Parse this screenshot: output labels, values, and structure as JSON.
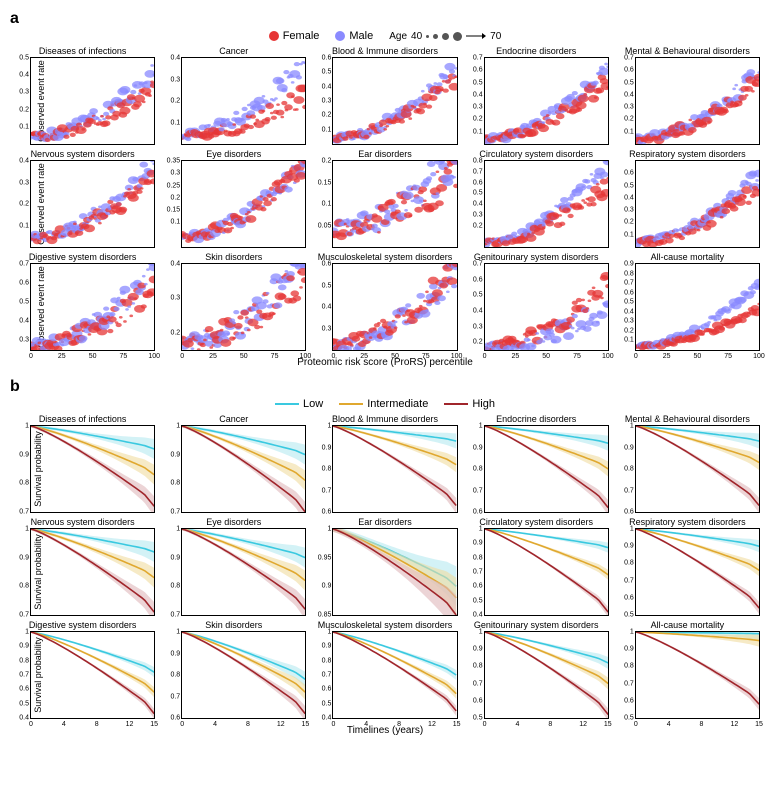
{
  "colors": {
    "female": "#e63535",
    "male": "#8a8aff",
    "low": "#3ac9e0",
    "intermediate": "#e0a82f",
    "high": "#a0252b",
    "ci_low": "#b6e9f0",
    "ci_mid": "#f0dca0",
    "ci_high": "#e0b8ba",
    "axis": "#000000",
    "bg": "#ffffff"
  },
  "section_a_label": "a",
  "section_b_label": "b",
  "legend_a": {
    "female": "Female",
    "male": "Male",
    "age_label": "Age",
    "age_min": "40",
    "age_max": "70"
  },
  "legend_b": {
    "low": "Low",
    "intermediate": "Intermediate",
    "high": "High"
  },
  "axis_a": {
    "xlabel": "Proteomic risk score (ProRS) percentile",
    "ylabel": "Observed event rate",
    "xticks": [
      0,
      25,
      50,
      75,
      100
    ]
  },
  "axis_b": {
    "xlabel": "Timelines (years)",
    "ylabel": "Survival probability",
    "xticks": [
      0,
      4,
      8,
      12,
      15
    ]
  },
  "panels_a": [
    {
      "title": "Diseases of infections",
      "ymax": 0.5,
      "yticks": [
        0.1,
        0.2,
        0.3,
        0.4,
        0.5
      ],
      "curve_m": 0.38,
      "curve_f": 0.3,
      "noise": 0.04
    },
    {
      "title": "Cancer",
      "ymax": 0.4,
      "yticks": [
        0.1,
        0.2,
        0.3,
        0.4
      ],
      "curve_m": 0.35,
      "curve_f": 0.18,
      "noise": 0.035
    },
    {
      "title": "Blood & Immune disorders",
      "ymax": 0.6,
      "yticks": [
        0.1,
        0.2,
        0.3,
        0.4,
        0.5,
        0.6
      ],
      "curve_m": 0.5,
      "curve_f": 0.42,
      "noise": 0.04
    },
    {
      "title": "Endocrine disorders",
      "ymax": 0.7,
      "yticks": [
        0.1,
        0.2,
        0.3,
        0.4,
        0.5,
        0.6,
        0.7
      ],
      "curve_m": 0.6,
      "curve_f": 0.48,
      "noise": 0.05
    },
    {
      "title": "Mental & Behavioural disorders",
      "ymax": 0.7,
      "yticks": [
        0.1,
        0.2,
        0.3,
        0.4,
        0.5,
        0.6,
        0.7
      ],
      "curve_m": 0.55,
      "curve_f": 0.48,
      "noise": 0.05
    },
    {
      "title": "Nervous system disorders",
      "ymax": 0.4,
      "yticks": [
        0.1,
        0.2,
        0.3,
        0.4
      ],
      "curve_m": 0.35,
      "curve_f": 0.3,
      "noise": 0.035
    },
    {
      "title": "Eye disorders",
      "ymax": 0.35,
      "yticks": [
        0.1,
        0.15,
        0.2,
        0.25,
        0.3,
        0.35
      ],
      "curve_m": 0.3,
      "curve_f": 0.3,
      "noise": 0.03
    },
    {
      "title": "Ear disorders",
      "ymax": 0.2,
      "yticks": [
        0.05,
        0.1,
        0.15,
        0.2
      ],
      "curve_m": 0.17,
      "curve_f": 0.13,
      "noise": 0.035
    },
    {
      "title": "Circulatory system disorders",
      "ymax": 0.8,
      "yticks": [
        0.2,
        0.3,
        0.4,
        0.5,
        0.6,
        0.7,
        0.8
      ],
      "curve_m": 0.75,
      "curve_f": 0.55,
      "noise": 0.06
    },
    {
      "title": "Respiratory system disorders",
      "ymax": 0.7,
      "yticks": [
        0.1,
        0.2,
        0.3,
        0.4,
        0.5,
        0.6
      ],
      "curve_m": 0.55,
      "curve_f": 0.45,
      "noise": 0.05
    },
    {
      "title": "Digestive system disorders",
      "ymax": 0.7,
      "yticks": [
        0.3,
        0.4,
        0.5,
        0.6,
        0.7
      ],
      "curve_m": 0.65,
      "curve_f": 0.55,
      "noise": 0.05,
      "ymin": 0.25
    },
    {
      "title": "Skin disorders",
      "ymax": 0.4,
      "yticks": [
        0.2,
        0.3,
        0.4
      ],
      "curve_m": 0.38,
      "curve_f": 0.35,
      "noise": 0.04,
      "ymin": 0.15
    },
    {
      "title": "Musculoskeletal system disorders",
      "ymax": 0.6,
      "yticks": [
        0.3,
        0.4,
        0.5,
        0.6
      ],
      "curve_m": 0.55,
      "curve_f": 0.58,
      "noise": 0.05,
      "ymin": 0.2
    },
    {
      "title": "Genitourinary system disorders",
      "ymax": 0.7,
      "yticks": [
        0.2,
        0.3,
        0.4,
        0.5,
        0.6,
        0.7
      ],
      "curve_m": 0.4,
      "curve_f": 0.55,
      "noise": 0.05,
      "ymin": 0.15
    },
    {
      "title": "All-cause mortality",
      "ymax": 0.9,
      "yticks": [
        0.1,
        0.2,
        0.3,
        0.4,
        0.5,
        0.6,
        0.7,
        0.8,
        0.9
      ],
      "curve_m": 0.65,
      "curve_f": 0.4,
      "noise": 0.03
    }
  ],
  "panels_b": [
    {
      "title": "Diseases of infections",
      "ymin": 0.7,
      "yticks": [
        0.7,
        0.8,
        0.9,
        1.0
      ],
      "end": {
        "l": 0.92,
        "m": 0.83,
        "h": 0.72
      }
    },
    {
      "title": "Cancer",
      "ymin": 0.7,
      "yticks": [
        0.7,
        0.8,
        0.9,
        1.0
      ],
      "end": {
        "l": 0.9,
        "m": 0.81,
        "h": 0.7
      }
    },
    {
      "title": "Blood & Immune disorders",
      "ymin": 0.6,
      "yticks": [
        0.6,
        0.7,
        0.8,
        0.9,
        1.0
      ],
      "end": {
        "l": 0.93,
        "m": 0.82,
        "h": 0.63
      }
    },
    {
      "title": "Endocrine disorders",
      "ymin": 0.6,
      "yticks": [
        0.6,
        0.7,
        0.8,
        0.9,
        1.0
      ],
      "end": {
        "l": 0.92,
        "m": 0.8,
        "h": 0.62
      }
    },
    {
      "title": "Mental & Behavioural disorders",
      "ymin": 0.6,
      "yticks": [
        0.6,
        0.7,
        0.8,
        0.9,
        1.0
      ],
      "end": {
        "l": 0.93,
        "m": 0.83,
        "h": 0.63
      }
    },
    {
      "title": "Nervous system disorders",
      "ymin": 0.7,
      "yticks": [
        0.7,
        0.8,
        0.9,
        1.0
      ],
      "end": {
        "l": 0.92,
        "m": 0.83,
        "h": 0.71
      }
    },
    {
      "title": "Eye disorders",
      "ymin": 0.7,
      "yticks": [
        0.7,
        0.8,
        0.9,
        1.0
      ],
      "end": {
        "l": 0.9,
        "m": 0.82,
        "h": 0.72
      }
    },
    {
      "title": "Ear disorders",
      "ymin": 0.85,
      "yticks": [
        0.85,
        0.9,
        0.95,
        1.0
      ],
      "end": {
        "l": 0.9,
        "m": 0.88,
        "h": 0.85
      }
    },
    {
      "title": "Circulatory system disorders",
      "ymin": 0.4,
      "yticks": [
        0.4,
        0.5,
        0.6,
        0.7,
        0.8,
        0.9,
        1.0
      ],
      "end": {
        "l": 0.87,
        "m": 0.68,
        "h": 0.42
      }
    },
    {
      "title": "Respiratory system disorders",
      "ymin": 0.5,
      "yticks": [
        0.5,
        0.6,
        0.7,
        0.8,
        0.9,
        1.0
      ],
      "end": {
        "l": 0.9,
        "m": 0.76,
        "h": 0.54
      }
    },
    {
      "title": "Digestive system disorders",
      "ymin": 0.4,
      "yticks": [
        0.4,
        0.5,
        0.6,
        0.7,
        0.8,
        0.9,
        1.0
      ],
      "end": {
        "l": 0.72,
        "m": 0.58,
        "h": 0.43
      }
    },
    {
      "title": "Skin disorders",
      "ymin": 0.6,
      "yticks": [
        0.6,
        0.7,
        0.8,
        0.9,
        1.0
      ],
      "end": {
        "l": 0.78,
        "m": 0.72,
        "h": 0.62
      }
    },
    {
      "title": "Musculoskeletal system disorders",
      "ymin": 0.4,
      "yticks": [
        0.4,
        0.5,
        0.6,
        0.7,
        0.8,
        0.9,
        1.0
      ],
      "end": {
        "l": 0.7,
        "m": 0.57,
        "h": 0.45
      }
    },
    {
      "title": "Genitourinary system disorders",
      "ymin": 0.5,
      "yticks": [
        0.5,
        0.6,
        0.7,
        0.8,
        0.9,
        1.0
      ],
      "end": {
        "l": 0.82,
        "m": 0.7,
        "h": 0.52
      }
    },
    {
      "title": "All-cause mortality",
      "ymin": 0.5,
      "yticks": [
        0.5,
        0.6,
        0.7,
        0.8,
        0.9,
        1.0
      ],
      "end": {
        "l": 0.99,
        "m": 0.95,
        "h": 0.58
      }
    }
  ],
  "scatter_sizes": [
    1.5,
    2.5,
    3.5,
    4.5
  ],
  "line_width": 1.6,
  "ci_width": 4
}
